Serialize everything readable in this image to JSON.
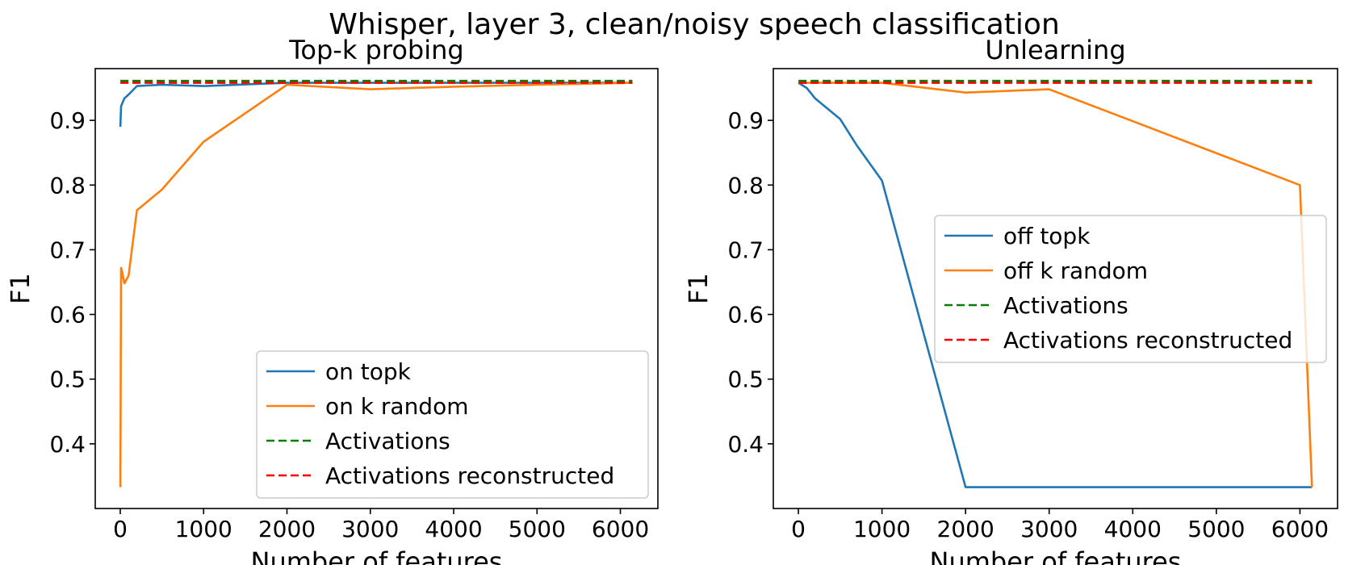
{
  "figure": {
    "suptitle": "Whisper, layer 3, clean/noisy speech classification"
  },
  "chart_data": [
    {
      "type": "line",
      "title": "Top-k probing",
      "xlabel": "Number of features",
      "ylabel": "F1",
      "xlim": [
        -300,
        6450
      ],
      "ylim": [
        0.3,
        0.98
      ],
      "xticks": [
        0,
        1000,
        2000,
        3000,
        4000,
        5000,
        6000
      ],
      "yticks": [
        0.4,
        0.5,
        0.6,
        0.7,
        0.8,
        0.9
      ],
      "legend_position": "lower-right",
      "series": [
        {
          "name": "on topk",
          "color": "#1f77b4",
          "dash": "solid",
          "x": [
            1,
            10,
            20,
            50,
            100,
            200,
            500,
            1000,
            2000,
            3000,
            4000,
            5000,
            6144
          ],
          "y": [
            0.89,
            0.922,
            0.925,
            0.934,
            0.94,
            0.953,
            0.955,
            0.953,
            0.958,
            0.958,
            0.958,
            0.958,
            0.958
          ]
        },
        {
          "name": "on k random",
          "color": "#ff7f0e",
          "dash": "solid",
          "x": [
            1,
            10,
            20,
            50,
            100,
            200,
            500,
            1000,
            2000,
            3000,
            4000,
            5000,
            6144
          ],
          "y": [
            0.333,
            0.672,
            0.668,
            0.648,
            0.66,
            0.761,
            0.793,
            0.867,
            0.955,
            0.948,
            0.952,
            0.955,
            0.958
          ]
        },
        {
          "name": "Activations",
          "color": "#008000",
          "dash": "dashed",
          "x": [
            1,
            6144
          ],
          "y": [
            0.961,
            0.961
          ]
        },
        {
          "name": "Activations reconstructed",
          "color": "#ff0000",
          "dash": "dashed",
          "x": [
            1,
            6144
          ],
          "y": [
            0.958,
            0.958
          ]
        }
      ]
    },
    {
      "type": "line",
      "title": "Unlearning",
      "xlabel": "Number of features",
      "ylabel": "F1",
      "xlim": [
        -300,
        6450
      ],
      "ylim": [
        0.3,
        0.98
      ],
      "xticks": [
        0,
        1000,
        2000,
        3000,
        4000,
        5000,
        6000
      ],
      "yticks": [
        0.4,
        0.5,
        0.6,
        0.7,
        0.8,
        0.9
      ],
      "legend_position": "center-right",
      "series": [
        {
          "name": "off topk",
          "color": "#1f77b4",
          "dash": "solid",
          "x": [
            1,
            100,
            200,
            500,
            700,
            1000,
            2000,
            3000,
            4000,
            5000,
            6000,
            6144
          ],
          "y": [
            0.958,
            0.95,
            0.934,
            0.902,
            0.861,
            0.807,
            0.333,
            0.333,
            0.333,
            0.333,
            0.333,
            0.333
          ]
        },
        {
          "name": "off k random",
          "color": "#ff7f0e",
          "dash": "solid",
          "x": [
            1,
            100,
            500,
            1000,
            2000,
            3000,
            6000,
            6144
          ],
          "y": [
            0.958,
            0.958,
            0.958,
            0.958,
            0.943,
            0.948,
            0.8,
            0.333
          ]
        },
        {
          "name": "Activations",
          "color": "#008000",
          "dash": "dashed",
          "x": [
            1,
            6144
          ],
          "y": [
            0.961,
            0.961
          ]
        },
        {
          "name": "Activations reconstructed",
          "color": "#ff0000",
          "dash": "dashed",
          "x": [
            1,
            6144
          ],
          "y": [
            0.958,
            0.958
          ]
        }
      ]
    }
  ]
}
